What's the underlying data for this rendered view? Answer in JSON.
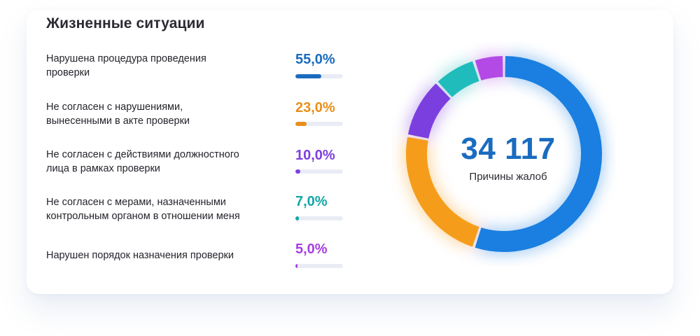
{
  "title": "Жизненные ситуации",
  "chart_data": {
    "type": "pie",
    "title": "Жизненные ситуации",
    "categories": [
      "Нарушена процедура проведения проверки",
      "Не согласен с нарушениями, вынесенными в акте проверки",
      "Не согласен с действиями должностного лица в рамках проверки",
      "Не согласен с мерами, назначенными контрольным органом в отношении меня",
      "Нарушен порядок назначения проверки"
    ],
    "values": [
      55.0,
      23.0,
      10.0,
      7.0,
      5.0
    ],
    "labels": [
      "55,0%",
      "23,0%",
      "10,0%",
      "7,0%",
      "5,0%"
    ],
    "colors": [
      "#1a7fe0",
      "#f59d1a",
      "#7b3fe0",
      "#20bcbc",
      "#b44ae6"
    ],
    "bar_colors": [
      "#1a6cc0",
      "#e8901a",
      "#7e3fe0",
      "#14a6a6",
      "#a63ee0"
    ],
    "total": "34 117",
    "total_label": "Причины жалоб"
  },
  "rows": [
    {
      "label_lines": [
        "Нарушена процедура проведения",
        "проверки"
      ]
    },
    {
      "label_lines": [
        "Не согласен с нарушениями,",
        "вынесенными в акте проверки"
      ]
    },
    {
      "label_lines": [
        "Не согласен с действиями должностного",
        "лица в рамках проверки"
      ]
    },
    {
      "label_lines": [
        "Не согласен с мерами, назначенными",
        "контрольным органом в отношении меня"
      ]
    },
    {
      "label_lines": [
        "Нарушен порядок назначения проверки"
      ]
    }
  ]
}
